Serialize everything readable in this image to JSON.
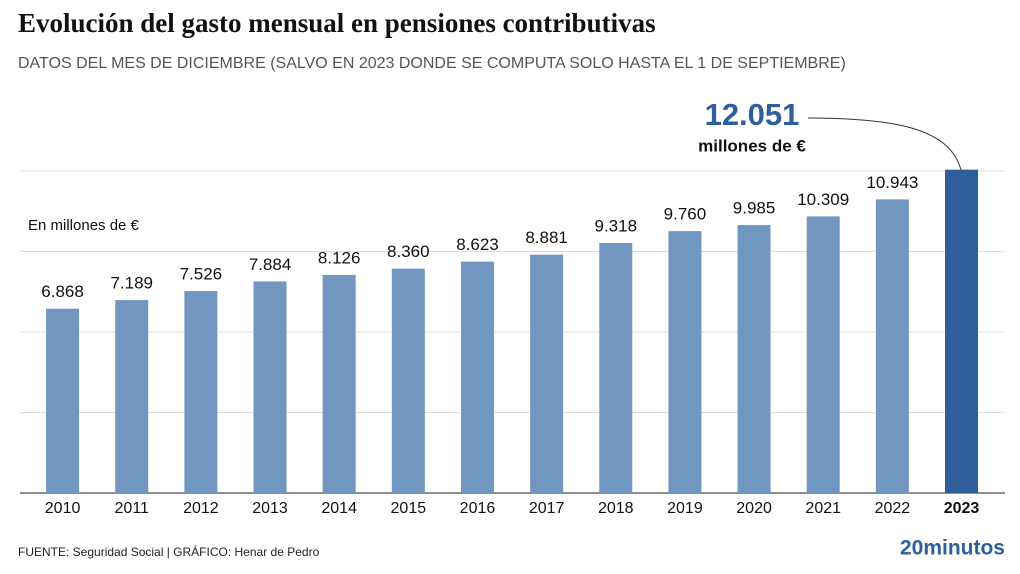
{
  "chart_data": {
    "type": "bar",
    "title": "Evolución del gasto mensual en pensiones contributivas",
    "subtitle": "DATOS DEL MES DE DICIEMBRE (SALVO EN 2023 DONDE SE COMPUTA SOLO HASTA EL 1 DE SEPTIEMBRE)",
    "y_axis_label": "En millones de €",
    "categories": [
      "2010",
      "2011",
      "2012",
      "2013",
      "2014",
      "2015",
      "2016",
      "2017",
      "2018",
      "2019",
      "2020",
      "2021",
      "2022",
      "2023"
    ],
    "values": [
      6868,
      7189,
      7526,
      7884,
      8126,
      8360,
      8623,
      8881,
      9318,
      9760,
      9985,
      10309,
      10943,
      12051
    ],
    "value_labels": [
      "6.868",
      "7.189",
      "7.526",
      "7.884",
      "8.126",
      "8.360",
      "8.623",
      "8.881",
      "9.318",
      "9.760",
      "9.985",
      "10.309",
      "10.943",
      "12.051"
    ],
    "annotation": "millones de €",
    "color": "#7196bf",
    "highlight": "2023",
    "highlight_color": "#2e5f9b",
    "ylim": [
      0,
      12000
    ],
    "yticks": [
      0,
      3000,
      6000,
      9000,
      12000
    ],
    "grid": true,
    "source": "FUENTE: Seguridad Social  |  GRÁFICO: Henar de Pedro",
    "logo": "20minutos"
  }
}
